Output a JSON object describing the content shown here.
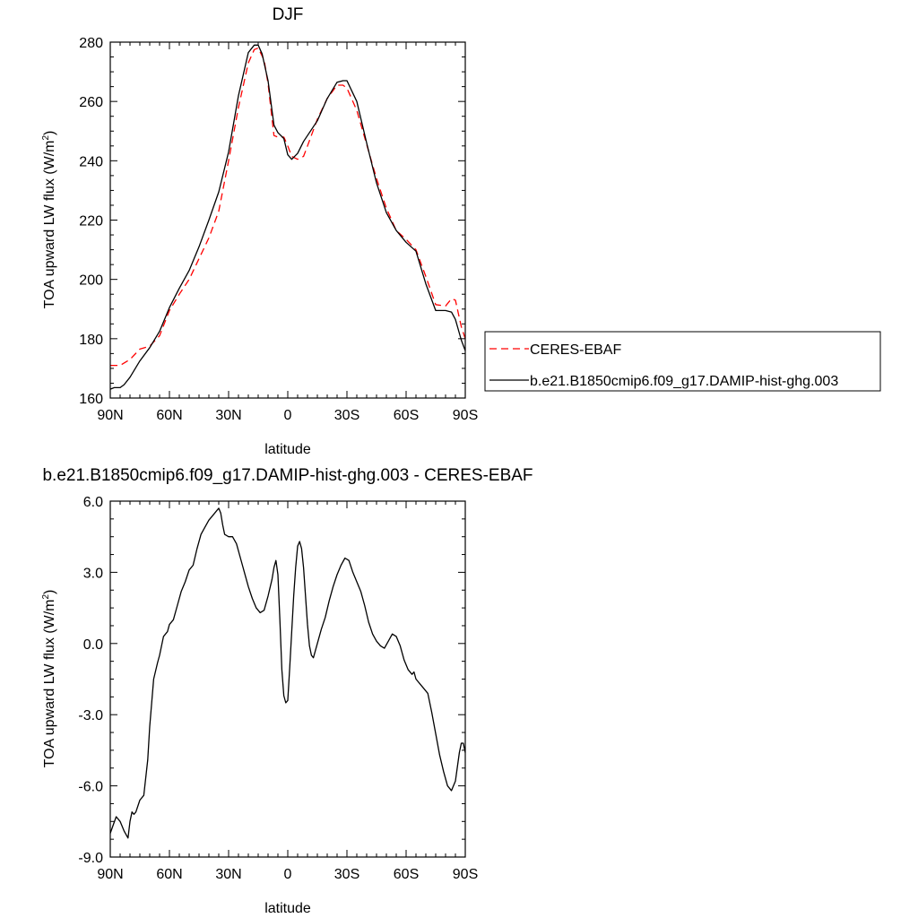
{
  "chart_data": [
    {
      "type": "line",
      "title": "DJF",
      "xlabel": "latitude",
      "ylabel": "TOA upward LW flux (W/m",
      "ylabel_sup": "2",
      "ylabel_close": ")",
      "xlim": [
        90,
        -90
      ],
      "ylim": [
        160,
        280
      ],
      "x_ticks": [
        90,
        60,
        30,
        0,
        -30,
        -60,
        -90
      ],
      "x_tick_labels": [
        "90N",
        "60N",
        "30N",
        "0",
        "30S",
        "60S",
        "90S"
      ],
      "y_ticks": [
        160,
        180,
        200,
        220,
        240,
        260,
        280
      ],
      "y_tick_labels": [
        "160",
        "180",
        "200",
        "220",
        "240",
        "260",
        "280"
      ],
      "legend_position": "right",
      "series": [
        {
          "name": "CERES-EBAF",
          "color": "#ff0000",
          "dash": "dashed",
          "x": [
            90,
            85,
            80,
            75,
            70,
            65,
            60,
            55,
            50,
            45,
            40,
            35,
            30,
            25,
            20,
            17,
            15,
            12,
            10,
            7,
            5,
            2,
            0,
            -2,
            -5,
            -8,
            -10,
            -15,
            -20,
            -25,
            -28,
            -30,
            -35,
            -40,
            -45,
            -50,
            -55,
            -60,
            -65,
            -70,
            -75,
            -80,
            -83,
            -85,
            -88,
            -90
          ],
          "y": [
            171,
            171,
            173,
            176.5,
            177.5,
            181,
            189.5,
            195,
            200,
            207,
            214,
            223,
            240,
            258,
            273,
            277.5,
            278,
            274,
            266,
            248.5,
            248,
            248,
            245,
            241.5,
            240.5,
            241.5,
            245,
            254,
            261,
            265.5,
            265.5,
            264.5,
            257,
            245.5,
            234,
            224,
            216.5,
            213.5,
            210,
            201,
            191.5,
            191,
            193.5,
            193,
            184,
            180
          ]
        },
        {
          "name": "b.e21.B1850cmip6.f09_g17.DAMIP-hist-ghg.003",
          "color": "#000000",
          "dash": "solid",
          "x": [
            90,
            88,
            85,
            83,
            80,
            75,
            70,
            65,
            60,
            55,
            50,
            45,
            40,
            35,
            30,
            25,
            20,
            17,
            15,
            13,
            10,
            7,
            5,
            2,
            0,
            -2,
            -5,
            -8,
            -10,
            -15,
            -20,
            -25,
            -28,
            -30,
            -35,
            -40,
            -45,
            -50,
            -55,
            -60,
            -65,
            -70,
            -75,
            -80,
            -83,
            -85,
            -88,
            -90
          ],
          "y": [
            163,
            163.5,
            163.5,
            164.5,
            167,
            172.5,
            177,
            182.5,
            190.5,
            197,
            203,
            211,
            220,
            229.5,
            243,
            262,
            276.5,
            279,
            279,
            276,
            267,
            252,
            249.5,
            247.5,
            242,
            240.5,
            242.5,
            246.5,
            248.5,
            253.5,
            261,
            266.5,
            267,
            267,
            260,
            246,
            232.5,
            222.5,
            216.5,
            212.5,
            209.5,
            198.5,
            189.5,
            189.5,
            189,
            186.5,
            179.5,
            176
          ]
        }
      ]
    },
    {
      "type": "line",
      "title": "b.e21.B1850cmip6.f09_g17.DAMIP-hist-ghg.003 - CERES-EBAF",
      "xlabel": "latitude",
      "ylabel": "TOA upward LW flux (W/m",
      "ylabel_sup": "2",
      "ylabel_close": ")",
      "xlim": [
        90,
        -90
      ],
      "ylim": [
        -9,
        6
      ],
      "x_ticks": [
        90,
        60,
        30,
        0,
        -30,
        -60,
        -90
      ],
      "x_tick_labels": [
        "90N",
        "60N",
        "30N",
        "0",
        "30S",
        "60S",
        "90S"
      ],
      "y_ticks": [
        -9,
        -6,
        -3,
        0,
        3,
        6
      ],
      "y_tick_labels": [
        "-9.0",
        "-6.0",
        "-3.0",
        "0.0",
        "3.0",
        "6.0"
      ],
      "series": [
        {
          "color": "#000000",
          "dash": "solid",
          "x": [
            90,
            87,
            85,
            83,
            81,
            80,
            79,
            78,
            77,
            75,
            73,
            71,
            70,
            68,
            66,
            65,
            63,
            61,
            60,
            58,
            56,
            54,
            52,
            50,
            48,
            46,
            44,
            42,
            40,
            38,
            36,
            35,
            34,
            33,
            32,
            30,
            28,
            26,
            24,
            22,
            20,
            18,
            16,
            14,
            12,
            10,
            8,
            7,
            6,
            5,
            4,
            3,
            2,
            1,
            0,
            -1,
            -2,
            -3,
            -4,
            -5,
            -6,
            -7,
            -8,
            -9,
            -10,
            -11,
            -12,
            -13,
            -15,
            -17,
            -19,
            -21,
            -23,
            -25,
            -27,
            -29,
            -31,
            -33,
            -35,
            -37,
            -39,
            -41,
            -43,
            -45,
            -47,
            -49,
            -51,
            -53,
            -55,
            -57,
            -59,
            -61,
            -63,
            -64,
            -65,
            -67,
            -69,
            -71,
            -73,
            -75,
            -77,
            -79,
            -81,
            -83,
            -85,
            -86,
            -87,
            -88,
            -89,
            -90
          ],
          "y": [
            -8.0,
            -7.3,
            -7.5,
            -7.9,
            -8.2,
            -7.5,
            -7.1,
            -7.2,
            -7.1,
            -6.6,
            -6.4,
            -4.9,
            -3.5,
            -1.5,
            -0.8,
            -0.5,
            0.3,
            0.5,
            0.8,
            1.0,
            1.6,
            2.2,
            2.6,
            3.1,
            3.3,
            4.0,
            4.6,
            4.9,
            5.2,
            5.4,
            5.6,
            5.7,
            5.5,
            5.0,
            4.6,
            4.5,
            4.5,
            4.2,
            3.6,
            3.0,
            2.4,
            1.9,
            1.5,
            1.3,
            1.4,
            2.0,
            2.7,
            3.2,
            3.5,
            2.9,
            1.0,
            -1.1,
            -2.2,
            -2.5,
            -2.4,
            -1.0,
            0.5,
            2.0,
            3.2,
            4.1,
            4.3,
            4.0,
            3.2,
            2.0,
            0.8,
            -0.1,
            -0.5,
            -0.6,
            0.0,
            0.6,
            1.1,
            1.8,
            2.4,
            2.9,
            3.3,
            3.6,
            3.5,
            3.0,
            2.6,
            2.2,
            1.6,
            0.9,
            0.4,
            0.1,
            -0.1,
            -0.2,
            0.1,
            0.4,
            0.3,
            -0.1,
            -0.7,
            -1.1,
            -1.3,
            -1.2,
            -1.5,
            -1.7,
            -1.9,
            -2.1,
            -2.9,
            -3.8,
            -4.7,
            -5.4,
            -6.0,
            -6.2,
            -5.8,
            -5.2,
            -4.6,
            -4.2,
            -4.2,
            -4.6
          ]
        }
      ]
    }
  ]
}
